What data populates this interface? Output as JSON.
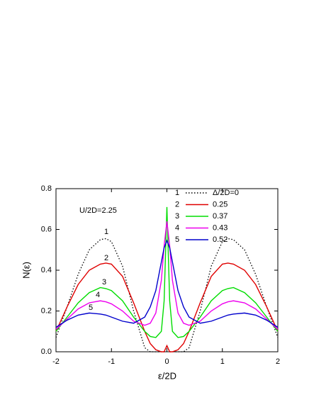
{
  "chart_data": {
    "type": "line",
    "xlabel": "ε/2D",
    "ylabel": "N(ε)",
    "annotation": "U/2D=2.25",
    "x": [
      -2,
      -1.8,
      -1.6,
      -1.4,
      -1.2,
      -1.1,
      -1.0,
      -0.8,
      -0.6,
      -0.4,
      -0.3,
      -0.2,
      -0.1,
      -0.05,
      0,
      0.05,
      0.1,
      0.2,
      0.3,
      0.4,
      0.6,
      0.8,
      1.0,
      1.1,
      1.2,
      1.4,
      1.6,
      1.8,
      2
    ],
    "xlim": [
      -2,
      2
    ],
    "xticks": [
      -2,
      -1,
      0,
      1,
      2
    ],
    "ylim": [
      0,
      0.8
    ],
    "yticks": [
      {
        "value": 0,
        "label": "0.0"
      },
      0.2,
      0.4,
      0.6,
      0.8
    ],
    "series": [
      {
        "id": "1",
        "name": "Δ/2D=0",
        "color": "#000000",
        "linestyle": "dotted",
        "values": [
          0.07,
          0.22,
          0.38,
          0.5,
          0.55,
          0.555,
          0.54,
          0.42,
          0.2,
          0.02,
          0,
          0,
          0,
          0,
          0.03,
          0,
          0,
          0,
          0,
          0.02,
          0.2,
          0.42,
          0.54,
          0.555,
          0.55,
          0.5,
          0.38,
          0.22,
          0.07
        ]
      },
      {
        "id": "2",
        "name": "0.25",
        "color": "#e00000",
        "linestyle": "solid",
        "values": [
          0.1,
          0.22,
          0.33,
          0.4,
          0.43,
          0.435,
          0.43,
          0.37,
          0.24,
          0.1,
          0.04,
          0.01,
          0,
          0,
          0.03,
          0,
          0,
          0.01,
          0.04,
          0.1,
          0.24,
          0.37,
          0.43,
          0.435,
          0.43,
          0.4,
          0.33,
          0.22,
          0.1
        ]
      },
      {
        "id": "3",
        "name": "0.37",
        "color": "#00dd00",
        "linestyle": "solid",
        "values": [
          0.1,
          0.17,
          0.24,
          0.29,
          0.315,
          0.31,
          0.3,
          0.25,
          0.17,
          0.1,
          0.075,
          0.07,
          0.1,
          0.25,
          0.71,
          0.25,
          0.1,
          0.07,
          0.075,
          0.1,
          0.17,
          0.25,
          0.3,
          0.31,
          0.315,
          0.29,
          0.24,
          0.17,
          0.1
        ]
      },
      {
        "id": "4",
        "name": "0.43",
        "color": "#ee00ee",
        "linestyle": "solid",
        "values": [
          0.11,
          0.16,
          0.21,
          0.24,
          0.25,
          0.245,
          0.235,
          0.2,
          0.15,
          0.13,
          0.14,
          0.19,
          0.35,
          0.52,
          0.64,
          0.52,
          0.35,
          0.19,
          0.14,
          0.13,
          0.15,
          0.2,
          0.235,
          0.245,
          0.25,
          0.24,
          0.21,
          0.16,
          0.11
        ]
      },
      {
        "id": "5",
        "name": "0.52",
        "color": "#0000cc",
        "linestyle": "solid",
        "values": [
          0.12,
          0.155,
          0.18,
          0.19,
          0.185,
          0.18,
          0.17,
          0.15,
          0.14,
          0.17,
          0.22,
          0.3,
          0.44,
          0.51,
          0.545,
          0.51,
          0.44,
          0.3,
          0.22,
          0.17,
          0.14,
          0.15,
          0.17,
          0.18,
          0.185,
          0.19,
          0.18,
          0.155,
          0.12
        ]
      }
    ]
  }
}
